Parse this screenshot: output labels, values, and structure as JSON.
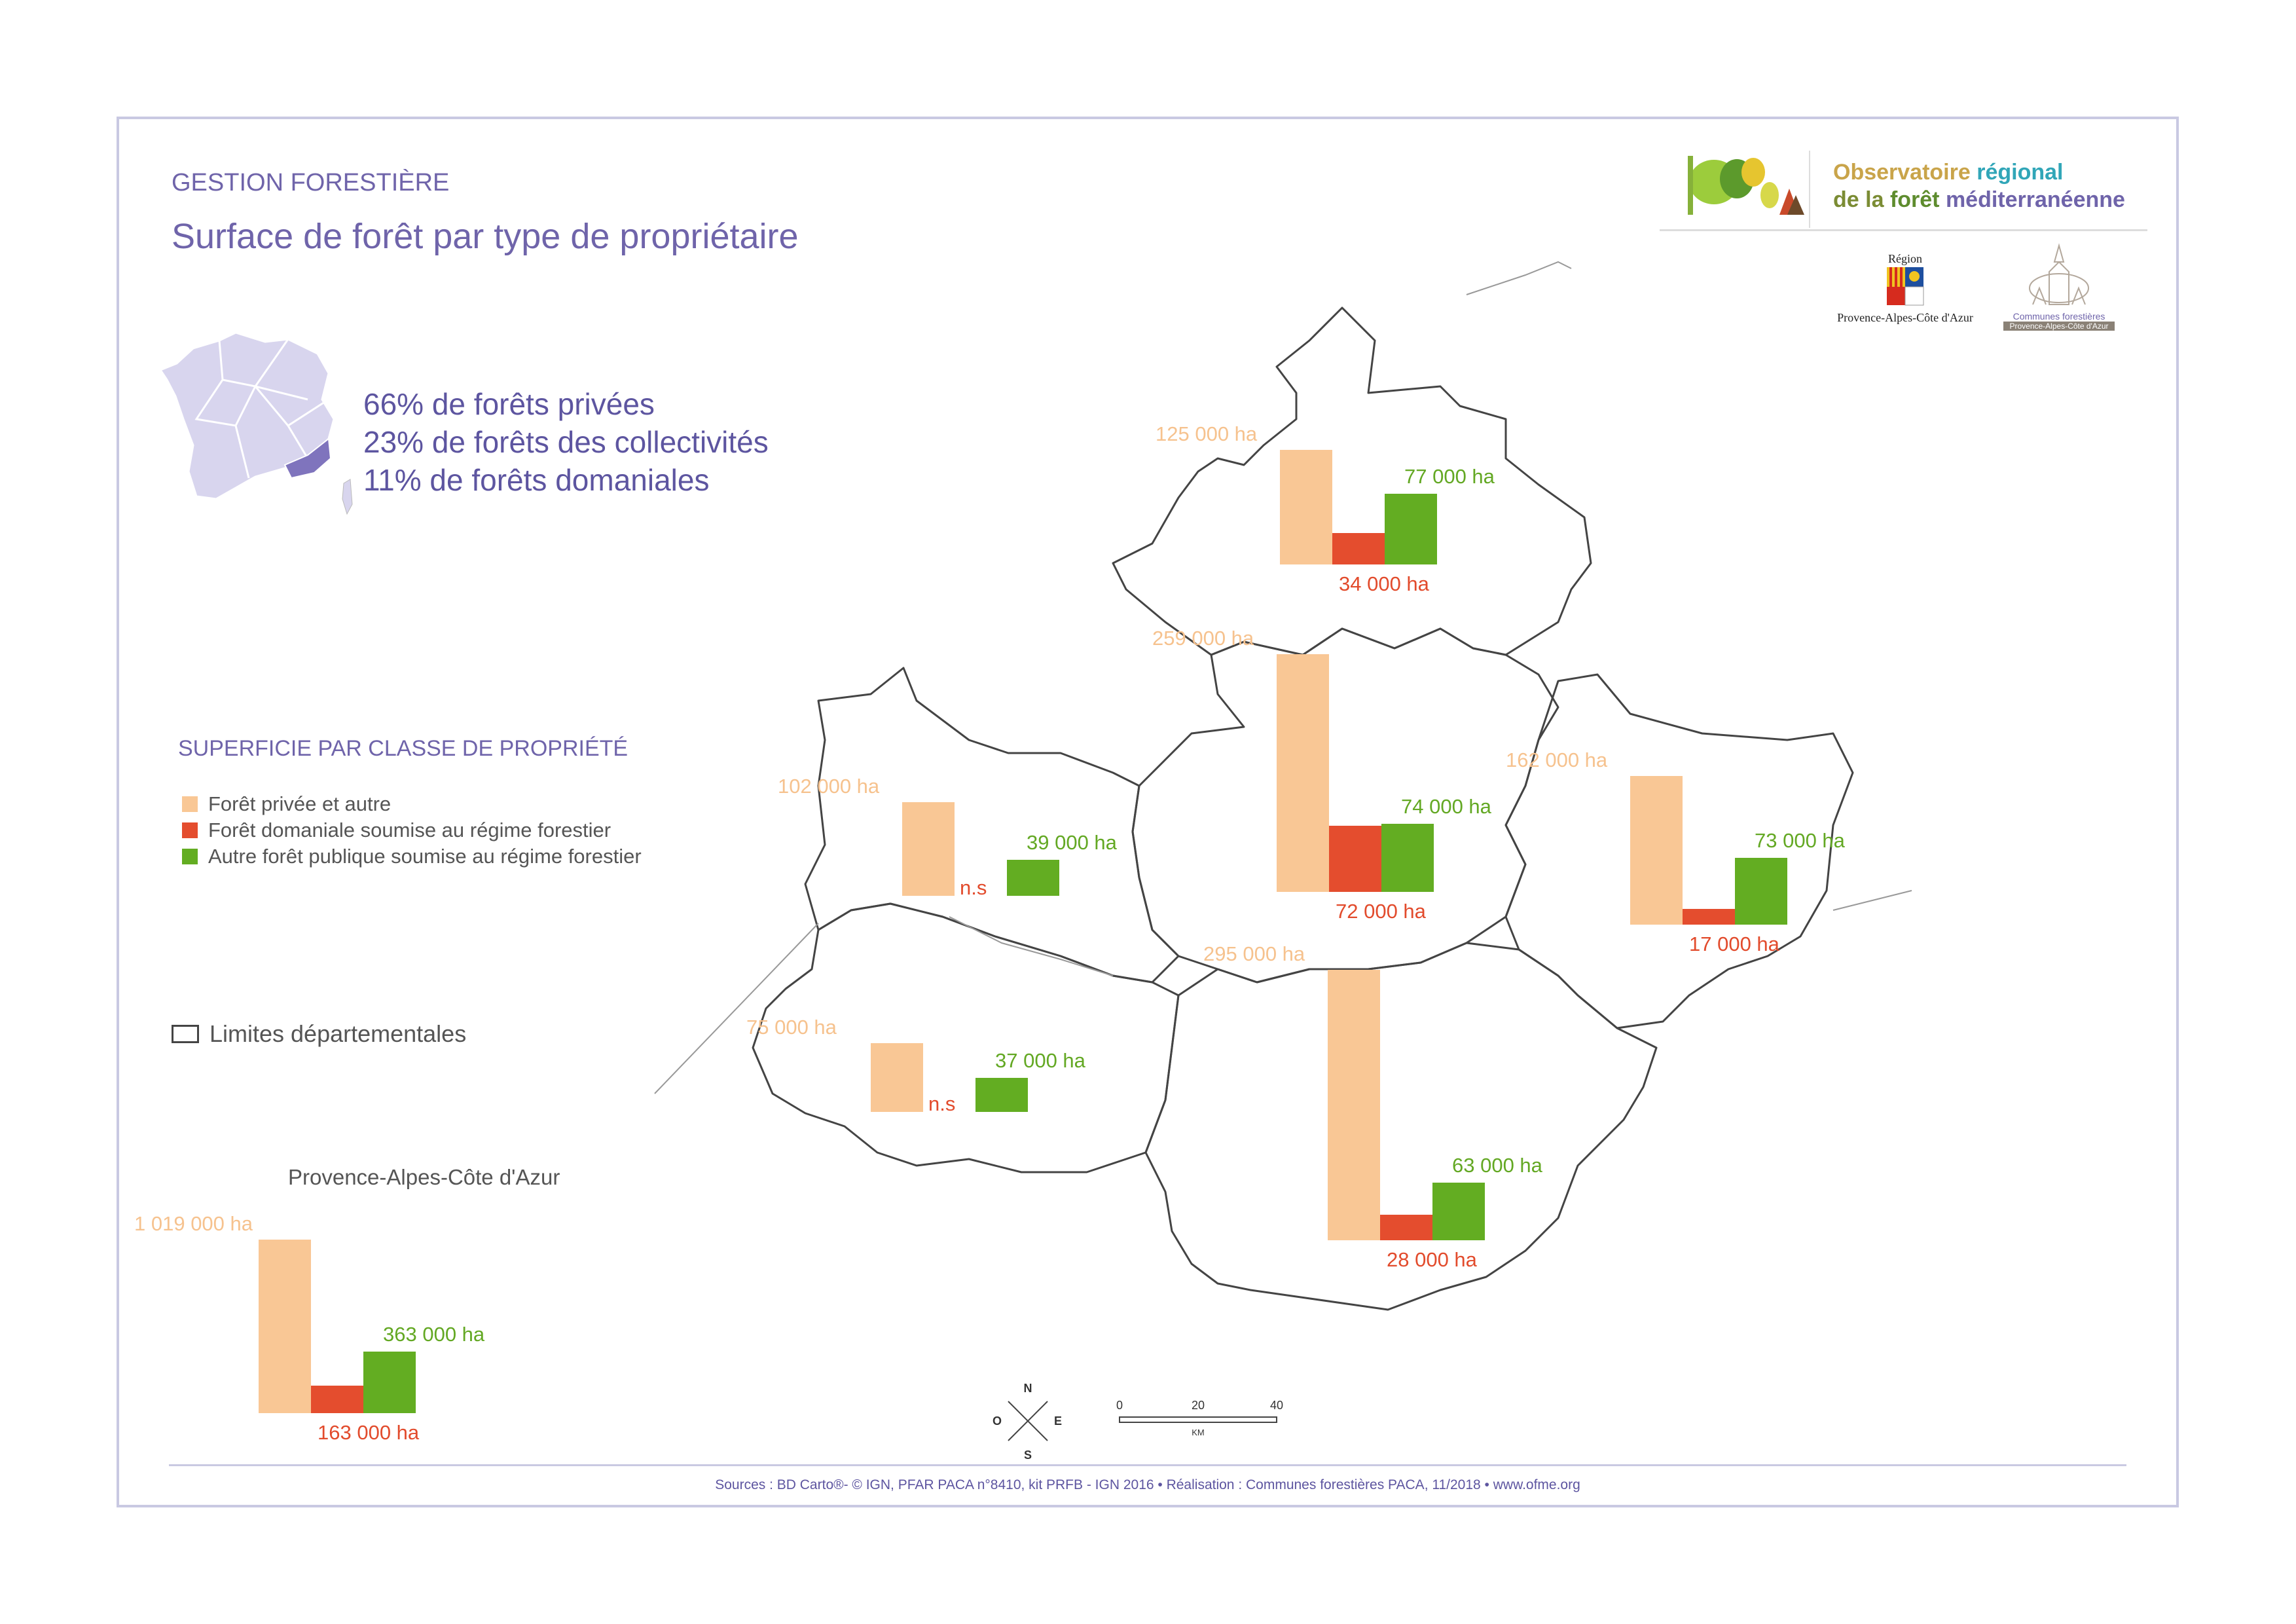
{
  "header": {
    "section": "GESTION FORESTIÈRE",
    "title": "Surface de forêt par type de propriétaire"
  },
  "stats": [
    "66% de forêts privées",
    "23% de forêts des collectivités",
    "11% de forêts domaniales"
  ],
  "legend": {
    "title": "SUPERFICIE PAR CLASSE DE PROPRIÉTÉ",
    "items": [
      {
        "label": "Forêt privée et autre",
        "color": "#f9c795"
      },
      {
        "label": "Forêt domaniale soumise au régime forestier",
        "color": "#e44d2e"
      },
      {
        "label": "Autre forêt publique soumise au régime forestier",
        "color": "#63ad22"
      }
    ],
    "limits_label": "Limites départementales"
  },
  "logos": {
    "observatoire_line1_a": "Observatoire",
    "observatoire_line1_b": "régional",
    "observatoire_line2_a": "de la",
    "observatoire_line2_b": "forêt",
    "observatoire_line2_c": "méditerranéenne",
    "region_top": "Région",
    "region_bottom": "Provence-Alpes-Côte d'Azur",
    "communes_line1": "Communes forestières",
    "communes_line2": "Provence-Alpes-Côte d'Azur"
  },
  "chart_data": {
    "type": "bar",
    "unit": "ha",
    "series_names": [
      "Forêt privée et autre",
      "Forêt domaniale soumise au régime forestier",
      "Autre forêt publique soumise au régime forestier"
    ],
    "groups": [
      {
        "id": "north",
        "values": [
          125000,
          34000,
          77000
        ],
        "labels": [
          "125 000 ha",
          "34 000 ha",
          "77 000 ha"
        ]
      },
      {
        "id": "center",
        "values": [
          259000,
          72000,
          74000
        ],
        "labels": [
          "259 000 ha",
          "72 000 ha",
          "74 000 ha"
        ]
      },
      {
        "id": "east",
        "values": [
          162000,
          17000,
          73000
        ],
        "labels": [
          "162 000 ha",
          "17 000 ha",
          "73 000 ha"
        ]
      },
      {
        "id": "west",
        "values": [
          102000,
          0,
          39000
        ],
        "labels": [
          "102 000 ha",
          "n.s",
          "39 000 ha"
        ]
      },
      {
        "id": "southwest",
        "values": [
          75000,
          0,
          37000
        ],
        "labels": [
          "75 000 ha",
          "n.s",
          "37 000 ha"
        ]
      },
      {
        "id": "south",
        "values": [
          295000,
          28000,
          63000
        ],
        "labels": [
          "295 000 ha",
          "28 000 ha",
          "63 000 ha"
        ]
      }
    ],
    "region_total": {
      "name": "Provence-Alpes-Côte d'Azur",
      "values": [
        1019000,
        163000,
        363000
      ],
      "labels": [
        "1 019 000 ha",
        "163 000 ha",
        "363 000 ha"
      ]
    }
  },
  "compass": {
    "n": "N",
    "s": "S",
    "e": "E",
    "o": "O"
  },
  "scalebar": {
    "ticks": [
      "0",
      "20",
      "40"
    ],
    "unit": "KM"
  },
  "footer": {
    "sources": "Sources : BD Carto®- © IGN, PFAR PACA n°8410,  kit PRFB - IGN 2016 • Réalisation : Communes forestières PACA, 11/2018 • ",
    "url": "www.ofme.org"
  },
  "colors": {
    "accent": "#6f64aa",
    "private": "#f9c795",
    "domanial": "#e44d2e",
    "public": "#63ad22"
  }
}
